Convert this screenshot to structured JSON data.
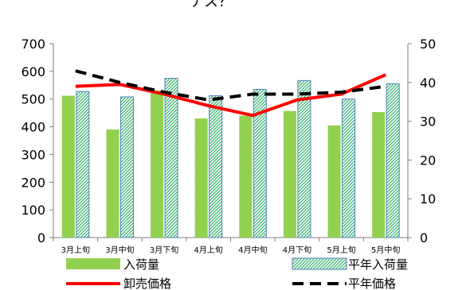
{
  "title_fragment": "ナス？",
  "colors": {
    "bar_arrival": "#92D050",
    "bar_avg_fill": "#ffffff",
    "bar_avg_pattern": "#3CB371",
    "bar_avg_border": "#4F81BD",
    "line_price": "#FF0000",
    "line_avg_price": "#000000",
    "axis": "#7F7F7F"
  },
  "chart_data": {
    "type": "bar",
    "categories": [
      "3月上旬",
      "3月中旬",
      "3月下旬",
      "4月上旬",
      "4月中旬",
      "4月下旬",
      "5月上旬",
      "5月中旬"
    ],
    "y_left": {
      "min": 0,
      "max": 700,
      "step": 100,
      "ticks": [
        "0",
        "100",
        "200",
        "300",
        "400",
        "500",
        "600",
        "700"
      ]
    },
    "y_right": {
      "min": 0,
      "max": 50,
      "step": 10,
      "ticks": [
        "0",
        "10",
        "20",
        "30",
        "40",
        "50"
      ]
    },
    "grid": false,
    "legend_position": "bottom",
    "series": [
      {
        "name": "入荷量",
        "kind": "bar",
        "axis": "left",
        "values": [
          512,
          390,
          530,
          430,
          440,
          457,
          405,
          453
        ]
      },
      {
        "name": "平年入荷量",
        "kind": "bar",
        "axis": "left",
        "values": [
          527,
          508,
          575,
          512,
          535,
          567,
          500,
          555
        ]
      },
      {
        "name": "卸売価格",
        "kind": "line",
        "axis": "right",
        "values": [
          39,
          39.5,
          37,
          34,
          31.5,
          35.5,
          37,
          42
        ]
      },
      {
        "name": "平年価格",
        "kind": "line",
        "axis": "right",
        "values": [
          43,
          40,
          37.5,
          35.5,
          37,
          37,
          37.5,
          39
        ]
      }
    ]
  }
}
